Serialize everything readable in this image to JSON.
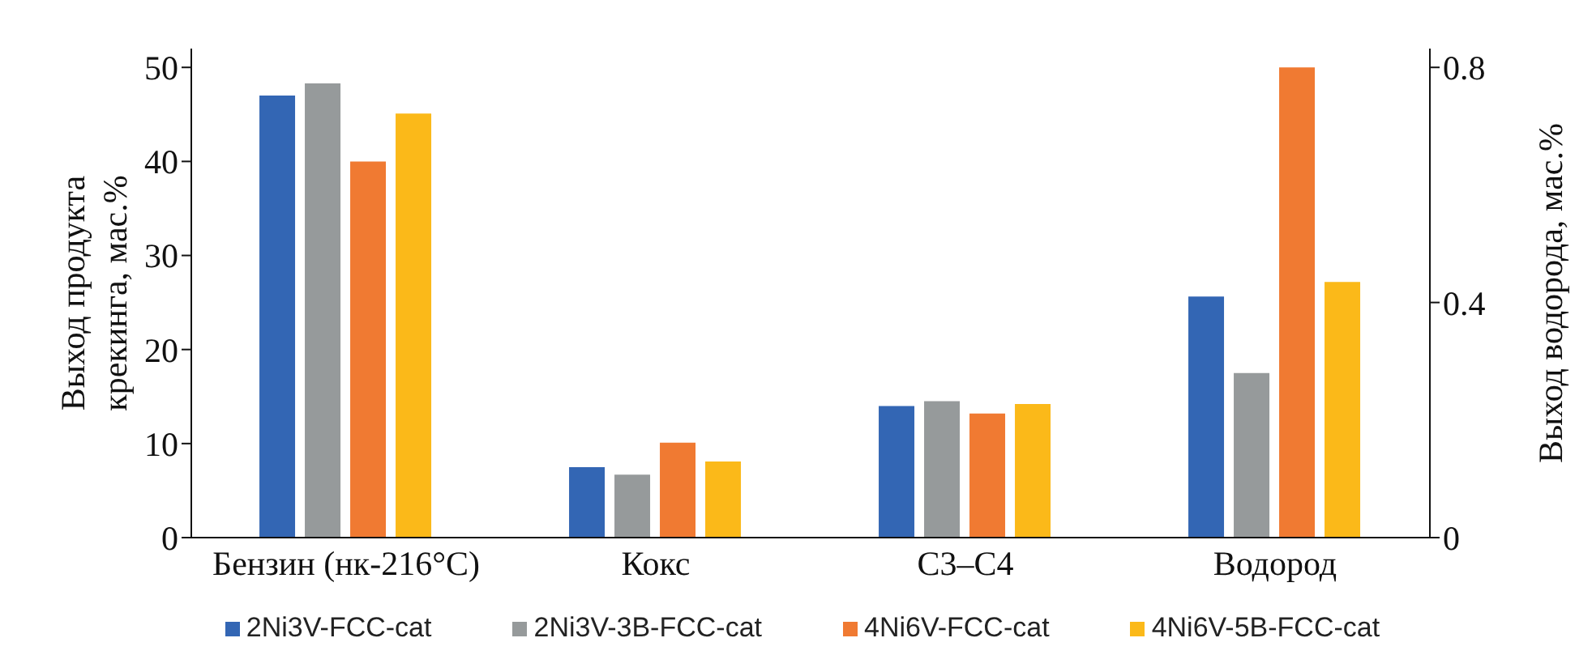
{
  "chart_data": {
    "type": "bar",
    "categories": [
      "Бензин (нк-216°C)",
      "Кокс",
      "C3–C4",
      "Водород"
    ],
    "series": [
      {
        "name": "2Ni3V-FCC-cat",
        "color": "#3366b4",
        "values": [
          47,
          7.5,
          14,
          null
        ]
      },
      {
        "name": "2Ni3V-3B-FCC-cat",
        "color": "#969a9b",
        "values": [
          48.3,
          6.7,
          14.5,
          null
        ]
      },
      {
        "name": "4Ni6V-FCC-cat",
        "color": "#f07a32",
        "values": [
          40,
          10.1,
          13.2,
          null
        ]
      },
      {
        "name": "4Ni6V-5B-FCC-cat",
        "color": "#fbb919",
        "values": [
          45.1,
          8.1,
          14.2,
          null
        ]
      },
      {
        "color": "#3366b4",
        "axis": "y2",
        "values": [
          null,
          null,
          null,
          0.41
        ]
      },
      {
        "color": "#969a9b",
        "axis": "y2",
        "values": [
          null,
          null,
          null,
          0.28
        ]
      },
      {
        "color": "#f07a32",
        "axis": "y2",
        "values": [
          null,
          null,
          null,
          0.8
        ]
      },
      {
        "color": "#fbb919",
        "axis": "y2",
        "values": [
          null,
          null,
          null,
          0.435
        ]
      }
    ],
    "ylabel": "Выход продукта крекинга, мас.%",
    "y2label": "Выход водорода, мас.%",
    "ylim": [
      0,
      52
    ],
    "yticks": [
      0,
      10,
      20,
      30,
      40,
      50
    ],
    "y2lim": [
      0,
      0.832
    ],
    "y2ticks": [
      0,
      {
        "value": 0.4,
        "label": "0.4"
      },
      {
        "value": 0.8,
        "label": "0.8"
      }
    ],
    "legend": "bottom",
    "grid": false
  }
}
